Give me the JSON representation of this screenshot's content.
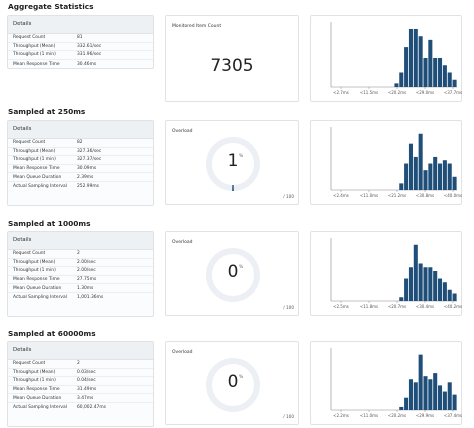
{
  "sections": [
    {
      "title": "Aggregate Statistics",
      "details_title": "Details",
      "rows": [
        {
          "label": "Request Count",
          "value": "81"
        },
        {
          "label": "Throughput (Mean)",
          "value": "332.61/sec"
        },
        {
          "label": "Throughput (1 min)",
          "value": "331.96/sec"
        },
        {
          "label": "Mean Response Time",
          "value": "30.46ms"
        }
      ],
      "mid": {
        "kind": "count",
        "label": "Monitored Item Count",
        "value": "7305"
      },
      "histogram": {
        "x_ticks": [
          "<2.7ms",
          "<11.5ms",
          "<20.2ms",
          "<29.0ms",
          "<37.7ms"
        ],
        "values": [
          0,
          0,
          0,
          0,
          0,
          0,
          0,
          0,
          0,
          0,
          0,
          0,
          0,
          1,
          4,
          11,
          16,
          16,
          14,
          8,
          13,
          8,
          8,
          6,
          4,
          2
        ]
      }
    },
    {
      "title": "Sampled at 250ms",
      "details_title": "Details",
      "rows": [
        {
          "label": "Request Count",
          "value": "82"
        },
        {
          "label": "Throughput (Mean)",
          "value": "327.36/sec"
        },
        {
          "label": "Throughput (1 min)",
          "value": "327.37/sec"
        },
        {
          "label": "Mean Response Time",
          "value": "30.09ms"
        },
        {
          "label": "Mean Queue Duration",
          "value": "2.39ms"
        },
        {
          "label": "Actual Sampling Interval",
          "value": "252.99ms"
        }
      ],
      "mid": {
        "kind": "gauge",
        "label": "Overload",
        "value": "1",
        "percent": 1,
        "unit": "%",
        "max": "/ 100"
      },
      "histogram": {
        "x_ticks": [
          "<2.4ms",
          "<11.0ms",
          "<21.2ms",
          "<30.8ms",
          "<40.0ms"
        ],
        "values": [
          0,
          0,
          0,
          0,
          0,
          0,
          0,
          0,
          0,
          0,
          0,
          0,
          0,
          0,
          2,
          8,
          14,
          10,
          17,
          6,
          8,
          10,
          8,
          9,
          8,
          4
        ]
      }
    },
    {
      "title": "Sampled at 1000ms",
      "details_title": "Details",
      "rows": [
        {
          "label": "Request Count",
          "value": "2"
        },
        {
          "label": "Throughput (Mean)",
          "value": "2.00/sec"
        },
        {
          "label": "Throughput (1 min)",
          "value": "2.00/sec"
        },
        {
          "label": "Mean Response Time",
          "value": "27.75ms"
        },
        {
          "label": "Mean Queue Duration",
          "value": "1.30ms"
        },
        {
          "label": "Actual Sampling Interval",
          "value": "1,001.36ms"
        }
      ],
      "mid": {
        "kind": "gauge",
        "label": "Overload",
        "value": "0",
        "percent": 0,
        "unit": "%",
        "max": "/ 100"
      },
      "histogram": {
        "x_ticks": [
          "<2.5ms",
          "<11.8ms",
          "<20.7ms",
          "<30.4ms",
          "<40.2ms"
        ],
        "values": [
          0,
          0,
          0,
          0,
          0,
          0,
          0,
          0,
          0,
          0,
          0,
          0,
          0,
          0,
          1,
          6,
          9,
          15,
          10,
          9,
          9,
          8,
          6,
          5,
          3,
          2
        ]
      }
    },
    {
      "title": "Sampled at 60000ms",
      "details_title": "Details",
      "rows": [
        {
          "label": "Request Count",
          "value": "2"
        },
        {
          "label": "Throughput (Mean)",
          "value": "0.03/sec"
        },
        {
          "label": "Throughput (1 min)",
          "value": "0.04/sec"
        },
        {
          "label": "Mean Response Time",
          "value": "31.49ms"
        },
        {
          "label": "Mean Queue Duration",
          "value": "3.47ms"
        },
        {
          "label": "Actual Sampling Interval",
          "value": "60,002.47ms"
        }
      ],
      "mid": {
        "kind": "gauge",
        "label": "Overload",
        "value": "0",
        "percent": 0,
        "unit": "%",
        "max": "/ 100"
      },
      "histogram": {
        "x_ticks": [
          "<2.2ms",
          "<11.0ms",
          "<20.2ms",
          "<29.9ms",
          "<37.4ms"
        ],
        "values": [
          0,
          0,
          0,
          0,
          0,
          0,
          0,
          0,
          0,
          0,
          0,
          0,
          0,
          0,
          1,
          4,
          10,
          9,
          18,
          11,
          10,
          12,
          8,
          6,
          9,
          5
        ]
      }
    }
  ]
}
